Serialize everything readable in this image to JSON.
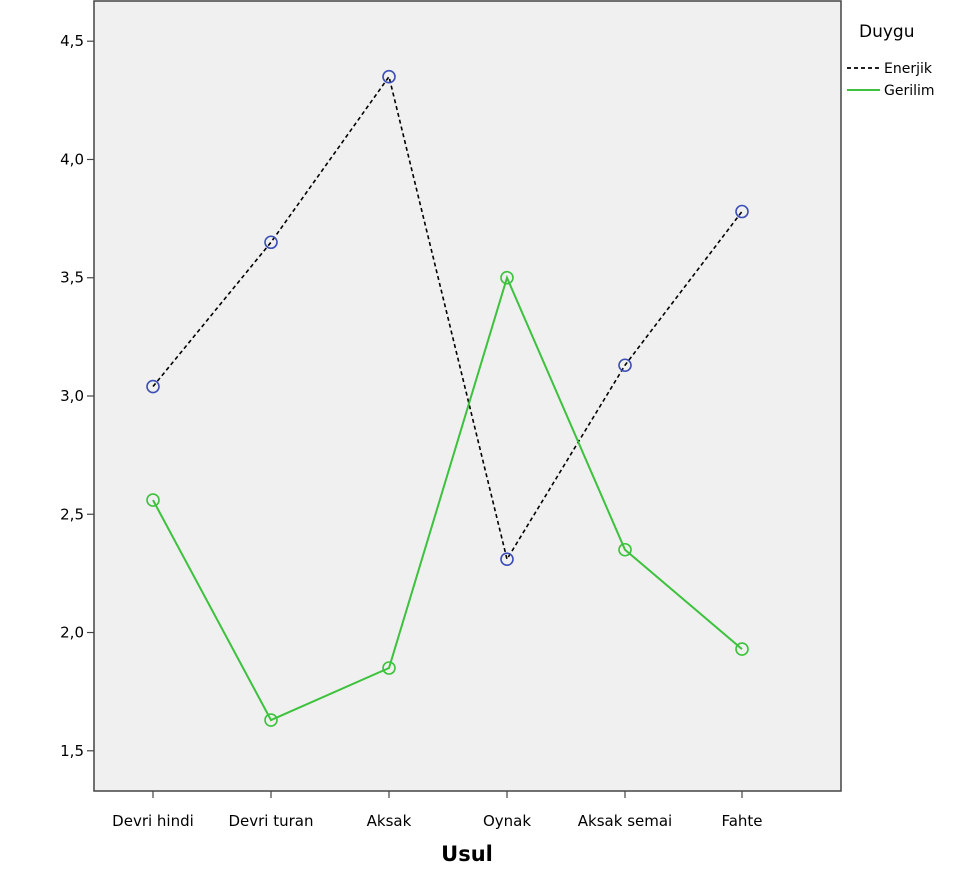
{
  "chart_data": {
    "type": "line",
    "xlabel": "Usul",
    "ylabel": "",
    "categories": [
      "Devri hindi",
      "Devri turan",
      "Aksak",
      "Oynak",
      "Aksak semai",
      "Fahte"
    ],
    "ylim": [
      1.33,
      4.67
    ],
    "yticks": [
      1.5,
      2.0,
      2.5,
      3.0,
      3.5,
      4.0,
      4.5
    ],
    "ytick_labels": [
      "1,5",
      "2,0",
      "2,5",
      "3,0",
      "3,5",
      "4,0",
      "4,5"
    ],
    "grid": false,
    "legend": {
      "title": "Duygu",
      "position": "right-top"
    },
    "background_color": "#f0f0f0",
    "series": [
      {
        "name": "Enerjik",
        "values": [
          3.04,
          3.65,
          4.35,
          2.31,
          3.13,
          3.78
        ],
        "line_color": "#000000",
        "marker_color": "#3d4fb6",
        "dash": "dashed"
      },
      {
        "name": "Gerilim",
        "values": [
          2.56,
          1.63,
          1.85,
          3.5,
          2.35,
          1.93
        ],
        "line_color": "#3cc23c",
        "marker_color": "#3cc23c",
        "dash": "solid"
      }
    ]
  }
}
